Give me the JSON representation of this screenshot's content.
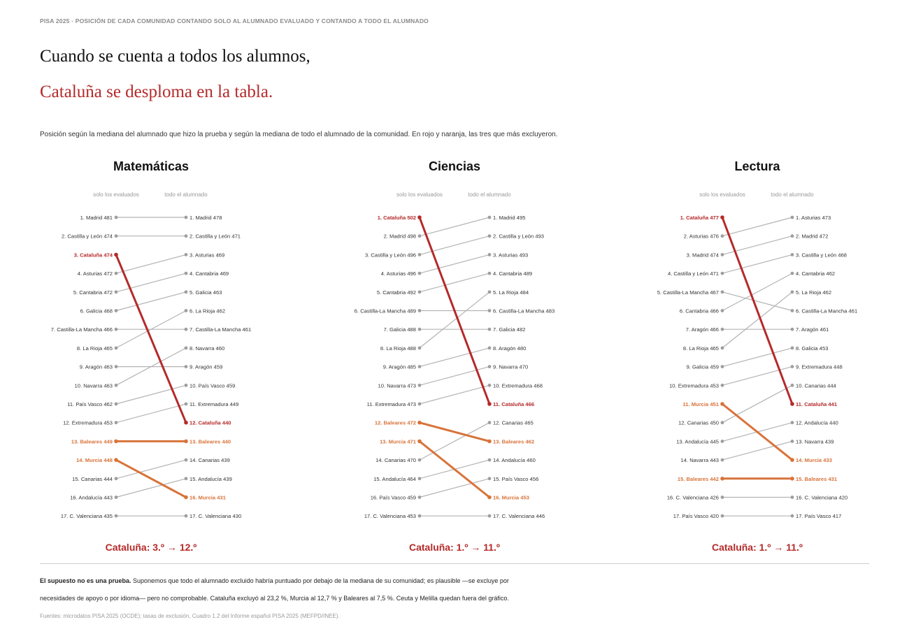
{
  "kicker": "PISA 2025 · POSICIÓN DE CADA COMUNIDAD CONTANDO SOLO AL ALUMNADO EVALUADO Y CONTANDO A TODO EL ALUMNADO",
  "headline_line1": "Cuando se cuenta a todos los alumnos,",
  "headline_line2": "Cataluña se desploma en la tabla.",
  "subtitle": "Posición según la mediana del alumnado que hizo la prueba y según la mediana de todo el alumnado de la comunidad. En rojo y naranja, las tres que más excluyeron.",
  "note_bold": "El supuesto no es una prueba.",
  "note_rest": " Suponemos que todo el alumnado excluido habría puntuado por debajo de la mediana de su comunidad; es plausible —se excluye por",
  "note_line2": "necesidades de apoyo o por idioma— pero no comprobable. Cataluña excluyó al 23,2 %, Murcia al 12,7 % y Baleares al 7,5 %. Ceuta y Melilla quedan fuera del gráfico.",
  "source": "Fuentes: microdatos PISA 2025 (OCDE); tasas de exclusión, Cuadro 1.2 del Informe español PISA 2025 (MEFPD/INEE).",
  "colors": {
    "red": "#b52a2a",
    "orange": "#d8733a",
    "gray": "#b3b3b3",
    "dot": "#9e9e9e"
  },
  "highlight": {
    "Cataluña": "red",
    "Baleares": "orange",
    "Murcia": "orange"
  },
  "chart_data": [
    {
      "type": "slope",
      "title": "Matemáticas",
      "left_label": "solo los evaluados",
      "right_label": "todo el alumnado",
      "caption": "Cataluña: 3.º → 12.º",
      "left": [
        {
          "rank": 1,
          "name": "Madrid",
          "value": 481
        },
        {
          "rank": 2,
          "name": "Castilla y León",
          "value": 474
        },
        {
          "rank": 3,
          "name": "Cataluña",
          "value": 474
        },
        {
          "rank": 4,
          "name": "Asturias",
          "value": 472
        },
        {
          "rank": 5,
          "name": "Cantabria",
          "value": 472
        },
        {
          "rank": 6,
          "name": "Galicia",
          "value": 468
        },
        {
          "rank": 7,
          "name": "Castilla-La Mancha",
          "value": 466
        },
        {
          "rank": 8,
          "name": "La Rioja",
          "value": 465
        },
        {
          "rank": 9,
          "name": "Aragón",
          "value": 463
        },
        {
          "rank": 10,
          "name": "Navarra",
          "value": 463
        },
        {
          "rank": 11,
          "name": "País Vasco",
          "value": 462
        },
        {
          "rank": 12,
          "name": "Extremadura",
          "value": 453
        },
        {
          "rank": 13,
          "name": "Baleares",
          "value": 449
        },
        {
          "rank": 14,
          "name": "Murcia",
          "value": 448
        },
        {
          "rank": 15,
          "name": "Canarias",
          "value": 444
        },
        {
          "rank": 16,
          "name": "Andalucía",
          "value": 443
        },
        {
          "rank": 17,
          "name": "C. Valenciana",
          "value": 435
        }
      ],
      "right": [
        {
          "rank": 1,
          "name": "Madrid",
          "value": 478
        },
        {
          "rank": 2,
          "name": "Castilla y León",
          "value": 471
        },
        {
          "rank": 3,
          "name": "Asturias",
          "value": 469
        },
        {
          "rank": 4,
          "name": "Cantabria",
          "value": 469
        },
        {
          "rank": 5,
          "name": "Galicia",
          "value": 463
        },
        {
          "rank": 6,
          "name": "La Rioja",
          "value": 462
        },
        {
          "rank": 7,
          "name": "Castilla-La Mancha",
          "value": 461
        },
        {
          "rank": 8,
          "name": "Navarra",
          "value": 460
        },
        {
          "rank": 9,
          "name": "Aragón",
          "value": 459
        },
        {
          "rank": 10,
          "name": "País Vasco",
          "value": 459
        },
        {
          "rank": 11,
          "name": "Extremadura",
          "value": 449
        },
        {
          "rank": 12,
          "name": "Cataluña",
          "value": 440
        },
        {
          "rank": 13,
          "name": "Baleares",
          "value": 440
        },
        {
          "rank": 14,
          "name": "Canarias",
          "value": 439
        },
        {
          "rank": 15,
          "name": "Andalucía",
          "value": 439
        },
        {
          "rank": 16,
          "name": "Murcia",
          "value": 431
        },
        {
          "rank": 17,
          "name": "C. Valenciana",
          "value": 430
        }
      ]
    },
    {
      "type": "slope",
      "title": "Ciencias",
      "left_label": "solo los evaluados",
      "right_label": "todo el alumnado",
      "caption": "Cataluña: 1.º → 11.º",
      "left": [
        {
          "rank": 1,
          "name": "Cataluña",
          "value": 502
        },
        {
          "rank": 2,
          "name": "Madrid",
          "value": 498
        },
        {
          "rank": 3,
          "name": "Castilla y León",
          "value": 496
        },
        {
          "rank": 4,
          "name": "Asturias",
          "value": 496
        },
        {
          "rank": 5,
          "name": "Cantabria",
          "value": 492
        },
        {
          "rank": 6,
          "name": "Castilla-La Mancha",
          "value": 489
        },
        {
          "rank": 7,
          "name": "Galicia",
          "value": 488
        },
        {
          "rank": 8,
          "name": "La Rioja",
          "value": 488
        },
        {
          "rank": 9,
          "name": "Aragón",
          "value": 485
        },
        {
          "rank": 10,
          "name": "Navarra",
          "value": 473
        },
        {
          "rank": 11,
          "name": "Extremadura",
          "value": 473
        },
        {
          "rank": 12,
          "name": "Baleares",
          "value": 472
        },
        {
          "rank": 13,
          "name": "Murcia",
          "value": 471
        },
        {
          "rank": 14,
          "name": "Canarias",
          "value": 470
        },
        {
          "rank": 15,
          "name": "Andalucía",
          "value": 464
        },
        {
          "rank": 16,
          "name": "País Vasco",
          "value": 459
        },
        {
          "rank": 17,
          "name": "C. Valenciana",
          "value": 453
        }
      ],
      "right": [
        {
          "rank": 1,
          "name": "Madrid",
          "value": 495
        },
        {
          "rank": 2,
          "name": "Castilla y León",
          "value": 493
        },
        {
          "rank": 3,
          "name": "Asturias",
          "value": 493
        },
        {
          "rank": 4,
          "name": "Cantabria",
          "value": 489
        },
        {
          "rank": 5,
          "name": "La Rioja",
          "value": 484
        },
        {
          "rank": 6,
          "name": "Castilla-La Mancha",
          "value": 483
        },
        {
          "rank": 7,
          "name": "Galicia",
          "value": 482
        },
        {
          "rank": 8,
          "name": "Aragón",
          "value": 480
        },
        {
          "rank": 9,
          "name": "Navarra",
          "value": 470
        },
        {
          "rank": 10,
          "name": "Extremadura",
          "value": 468
        },
        {
          "rank": 11,
          "name": "Cataluña",
          "value": 466
        },
        {
          "rank": 12,
          "name": "Canarias",
          "value": 465
        },
        {
          "rank": 13,
          "name": "Baleares",
          "value": 462
        },
        {
          "rank": 14,
          "name": "Andalucía",
          "value": 460
        },
        {
          "rank": 15,
          "name": "País Vasco",
          "value": 456
        },
        {
          "rank": 16,
          "name": "Murcia",
          "value": 453
        },
        {
          "rank": 17,
          "name": "C. Valenciana",
          "value": 446
        }
      ]
    },
    {
      "type": "slope",
      "title": "Lectura",
      "left_label": "solo los evaluados",
      "right_label": "todo el alumnado",
      "caption": "Cataluña: 1.º → 11.º",
      "left": [
        {
          "rank": 1,
          "name": "Cataluña",
          "value": 477
        },
        {
          "rank": 2,
          "name": "Asturias",
          "value": 476
        },
        {
          "rank": 3,
          "name": "Madrid",
          "value": 474
        },
        {
          "rank": 4,
          "name": "Castilla y León",
          "value": 471
        },
        {
          "rank": 5,
          "name": "Castilla-La Mancha",
          "value": 467
        },
        {
          "rank": 6,
          "name": "Cantabria",
          "value": 466
        },
        {
          "rank": 7,
          "name": "Aragón",
          "value": 466
        },
        {
          "rank": 8,
          "name": "La Rioja",
          "value": 465
        },
        {
          "rank": 9,
          "name": "Galicia",
          "value": 459
        },
        {
          "rank": 10,
          "name": "Extremadura",
          "value": 453
        },
        {
          "rank": 11,
          "name": "Murcia",
          "value": 451
        },
        {
          "rank": 12,
          "name": "Canarias",
          "value": 450
        },
        {
          "rank": 13,
          "name": "Andalucía",
          "value": 445
        },
        {
          "rank": 14,
          "name": "Navarra",
          "value": 443
        },
        {
          "rank": 15,
          "name": "Baleares",
          "value": 442
        },
        {
          "rank": 16,
          "name": "C. Valenciana",
          "value": 426
        },
        {
          "rank": 17,
          "name": "País Vasco",
          "value": 420
        }
      ],
      "right": [
        {
          "rank": 1,
          "name": "Asturias",
          "value": 473
        },
        {
          "rank": 2,
          "name": "Madrid",
          "value": 472
        },
        {
          "rank": 3,
          "name": "Castilla y León",
          "value": 468
        },
        {
          "rank": 4,
          "name": "Cantabria",
          "value": 462
        },
        {
          "rank": 5,
          "name": "La Rioja",
          "value": 462
        },
        {
          "rank": 6,
          "name": "Castilla-La Mancha",
          "value": 461
        },
        {
          "rank": 7,
          "name": "Aragón",
          "value": 461
        },
        {
          "rank": 8,
          "name": "Galicia",
          "value": 453
        },
        {
          "rank": 9,
          "name": "Extremadura",
          "value": 448
        },
        {
          "rank": 10,
          "name": "Canarias",
          "value": 444
        },
        {
          "rank": 11,
          "name": "Cataluña",
          "value": 441
        },
        {
          "rank": 12,
          "name": "Andalucía",
          "value": 440
        },
        {
          "rank": 13,
          "name": "Navarra",
          "value": 439
        },
        {
          "rank": 14,
          "name": "Murcia",
          "value": 433
        },
        {
          "rank": 15,
          "name": "Baleares",
          "value": 431
        },
        {
          "rank": 16,
          "name": "C. Valenciana",
          "value": 420
        },
        {
          "rank": 17,
          "name": "País Vasco",
          "value": 417
        }
      ]
    }
  ]
}
